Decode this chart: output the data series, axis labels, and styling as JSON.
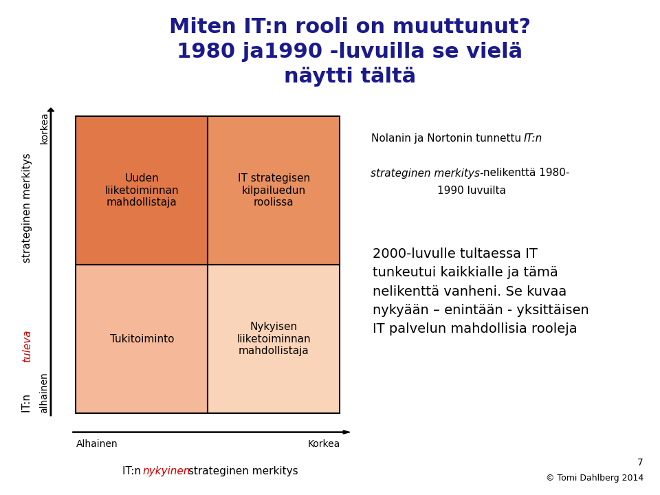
{
  "title_line1": "Miten IT:n rooli on muuttunut?",
  "title_line2": "1980 ja1990 -luvuilla se vielä",
  "title_line3": "näytti tältä",
  "title_color": "#1a1a8c",
  "title_fontsize": 22,
  "cell_color_tl": "#e07848",
  "cell_color_tr": "#e89060",
  "cell_color_bl": "#f5b898",
  "cell_color_br": "#fad4b8",
  "x_low_label": "Alhainen",
  "x_high_label": "Korkea",
  "y_low_label": "alhainen",
  "y_high_label": "korkea",
  "footer": "© Tomi Dahlberg 2014",
  "page_num": "7",
  "bg_color": "#ffffff"
}
